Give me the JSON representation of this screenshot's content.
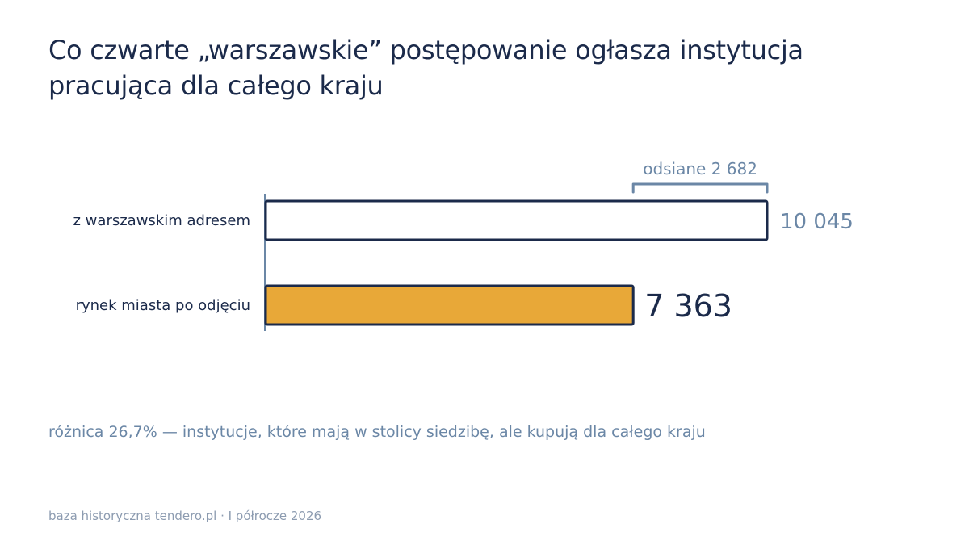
{
  "title_lines": [
    "Co czwarte „warszawskie” postępowanie ogłasza instytucja",
    "pracująca dla całego kraju"
  ],
  "note": "różnica 26,7% — instytucje, które mają w stolicy siedzibę, ale kupują dla całego kraju",
  "source": "baza historyczna tendero.pl · I półrocze 2026",
  "colors": {
    "text": "#1b2a4a",
    "muted": "#6b87a6",
    "highlight": "#e8a838",
    "outline": "#1b2a4a"
  },
  "chart_data": {
    "type": "bar",
    "orientation": "horizontal",
    "categories": [
      "z warszawskim adresem",
      "rynek miasta po odjęciu"
    ],
    "values": [
      10045,
      7363
    ],
    "value_labels": [
      "10 045",
      "7 363"
    ],
    "bracket": {
      "label": "odsiane 2 682",
      "from": 7363,
      "to": 10045
    },
    "xlim": [
      0,
      10045
    ],
    "grid": false,
    "legend": "none"
  }
}
